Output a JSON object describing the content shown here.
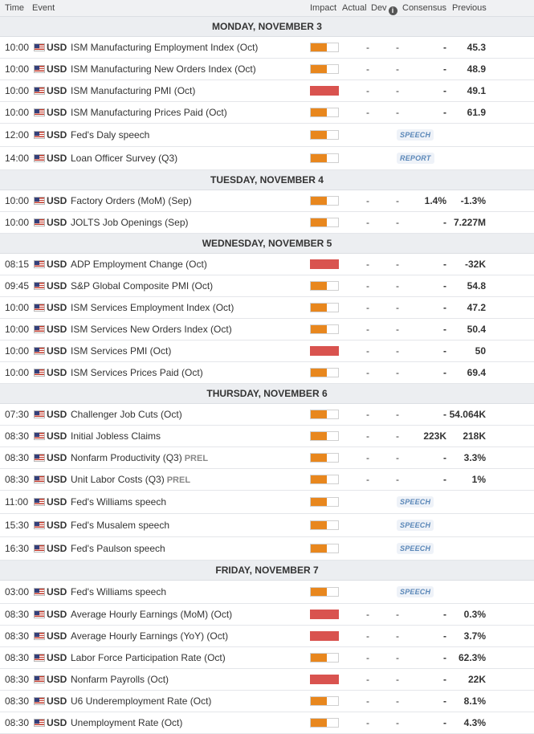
{
  "header": {
    "time": "Time",
    "event": "Event",
    "impact": "Impact",
    "actual": "Actual",
    "dev": "Dev",
    "dev_info": "i",
    "consensus": "Consensus",
    "previous": "Previous"
  },
  "currency_flag": "us-flag-icon",
  "colors": {
    "medium_impact": "#e8871e",
    "high_impact": "#d9534f",
    "tag_blue": "#5a87b8"
  },
  "days": [
    {
      "title": "MONDAY, NOVEMBER 3",
      "events": [
        {
          "time": "10:00",
          "currency": "USD",
          "name": "ISM Manufacturing Employment Index (Oct)",
          "impact": "medium",
          "actual": "-",
          "dev": "-",
          "consensus": "-",
          "previous": "45.3"
        },
        {
          "time": "10:00",
          "currency": "USD",
          "name": "ISM Manufacturing New Orders Index (Oct)",
          "impact": "medium",
          "actual": "-",
          "dev": "-",
          "consensus": "-",
          "previous": "48.9"
        },
        {
          "time": "10:00",
          "currency": "USD",
          "name": "ISM Manufacturing PMI (Oct)",
          "impact": "high",
          "actual": "-",
          "dev": "-",
          "consensus": "-",
          "previous": "49.1"
        },
        {
          "time": "10:00",
          "currency": "USD",
          "name": "ISM Manufacturing Prices Paid (Oct)",
          "impact": "medium",
          "actual": "-",
          "dev": "-",
          "consensus": "-",
          "previous": "61.9"
        },
        {
          "time": "12:00",
          "currency": "USD",
          "name": "Fed's Daly speech",
          "impact": "medium",
          "pill": "SPEECH"
        },
        {
          "time": "14:00",
          "currency": "USD",
          "name": "Loan Officer Survey (Q3)",
          "impact": "medium",
          "pill": "REPORT"
        }
      ]
    },
    {
      "title": "TUESDAY, NOVEMBER 4",
      "events": [
        {
          "time": "10:00",
          "currency": "USD",
          "name": "Factory Orders (MoM) (Sep)",
          "impact": "medium",
          "actual": "-",
          "dev": "-",
          "consensus": "1.4%",
          "previous": "-1.3%"
        },
        {
          "time": "10:00",
          "currency": "USD",
          "name": "JOLTS Job Openings (Sep)",
          "impact": "medium",
          "actual": "-",
          "dev": "-",
          "consensus": "-",
          "previous": "7.227M"
        }
      ]
    },
    {
      "title": "WEDNESDAY, NOVEMBER 5",
      "events": [
        {
          "time": "08:15",
          "currency": "USD",
          "name": "ADP Employment Change (Oct)",
          "impact": "high",
          "actual": "-",
          "dev": "-",
          "consensus": "-",
          "previous": "-32K"
        },
        {
          "time": "09:45",
          "currency": "USD",
          "name": "S&P Global Composite PMI (Oct)",
          "impact": "medium",
          "actual": "-",
          "dev": "-",
          "consensus": "-",
          "previous": "54.8"
        },
        {
          "time": "10:00",
          "currency": "USD",
          "name": "ISM Services Employment Index (Oct)",
          "impact": "medium",
          "actual": "-",
          "dev": "-",
          "consensus": "-",
          "previous": "47.2"
        },
        {
          "time": "10:00",
          "currency": "USD",
          "name": "ISM Services New Orders Index (Oct)",
          "impact": "medium",
          "actual": "-",
          "dev": "-",
          "consensus": "-",
          "previous": "50.4"
        },
        {
          "time": "10:00",
          "currency": "USD",
          "name": "ISM Services PMI (Oct)",
          "impact": "high",
          "actual": "-",
          "dev": "-",
          "consensus": "-",
          "previous": "50"
        },
        {
          "time": "10:00",
          "currency": "USD",
          "name": "ISM Services Prices Paid (Oct)",
          "impact": "medium",
          "actual": "-",
          "dev": "-",
          "consensus": "-",
          "previous": "69.4"
        }
      ]
    },
    {
      "title": "THURSDAY, NOVEMBER 6",
      "events": [
        {
          "time": "07:30",
          "currency": "USD",
          "name": "Challenger Job Cuts (Oct)",
          "impact": "medium",
          "actual": "-",
          "dev": "-",
          "consensus": "-",
          "previous": "54.064K"
        },
        {
          "time": "08:30",
          "currency": "USD",
          "name": "Initial Jobless Claims",
          "impact": "medium",
          "actual": "-",
          "dev": "-",
          "consensus": "223K",
          "previous": "218K"
        },
        {
          "time": "08:30",
          "currency": "USD",
          "name": "Nonfarm Productivity (Q3)",
          "tag": "PREL",
          "impact": "medium",
          "actual": "-",
          "dev": "-",
          "consensus": "-",
          "previous": "3.3%"
        },
        {
          "time": "08:30",
          "currency": "USD",
          "name": "Unit Labor Costs (Q3)",
          "tag": "PREL",
          "impact": "medium",
          "actual": "-",
          "dev": "-",
          "consensus": "-",
          "previous": "1%"
        },
        {
          "time": "11:00",
          "currency": "USD",
          "name": "Fed's Williams speech",
          "impact": "medium",
          "pill": "SPEECH"
        },
        {
          "time": "15:30",
          "currency": "USD",
          "name": "Fed's Musalem speech",
          "impact": "medium",
          "pill": "SPEECH"
        },
        {
          "time": "16:30",
          "currency": "USD",
          "name": "Fed's Paulson speech",
          "impact": "medium",
          "pill": "SPEECH"
        }
      ]
    },
    {
      "title": "FRIDAY, NOVEMBER 7",
      "events": [
        {
          "time": "03:00",
          "currency": "USD",
          "name": "Fed's Williams speech",
          "impact": "medium",
          "pill": "SPEECH"
        },
        {
          "time": "08:30",
          "currency": "USD",
          "name": "Average Hourly Earnings (MoM) (Oct)",
          "impact": "high",
          "actual": "-",
          "dev": "-",
          "consensus": "-",
          "previous": "0.3%"
        },
        {
          "time": "08:30",
          "currency": "USD",
          "name": "Average Hourly Earnings (YoY) (Oct)",
          "impact": "high",
          "actual": "-",
          "dev": "-",
          "consensus": "-",
          "previous": "3.7%"
        },
        {
          "time": "08:30",
          "currency": "USD",
          "name": "Labor Force Participation Rate (Oct)",
          "impact": "medium",
          "actual": "-",
          "dev": "-",
          "consensus": "-",
          "previous": "62.3%"
        },
        {
          "time": "08:30",
          "currency": "USD",
          "name": "Nonfarm Payrolls (Oct)",
          "impact": "high",
          "actual": "-",
          "dev": "-",
          "consensus": "-",
          "previous": "22K"
        },
        {
          "time": "08:30",
          "currency": "USD",
          "name": "U6 Underemployment Rate (Oct)",
          "impact": "medium",
          "actual": "-",
          "dev": "-",
          "consensus": "-",
          "previous": "8.1%"
        },
        {
          "time": "08:30",
          "currency": "USD",
          "name": "Unemployment Rate (Oct)",
          "impact": "medium",
          "actual": "-",
          "dev": "-",
          "consensus": "-",
          "previous": "4.3%"
        }
      ]
    }
  ]
}
